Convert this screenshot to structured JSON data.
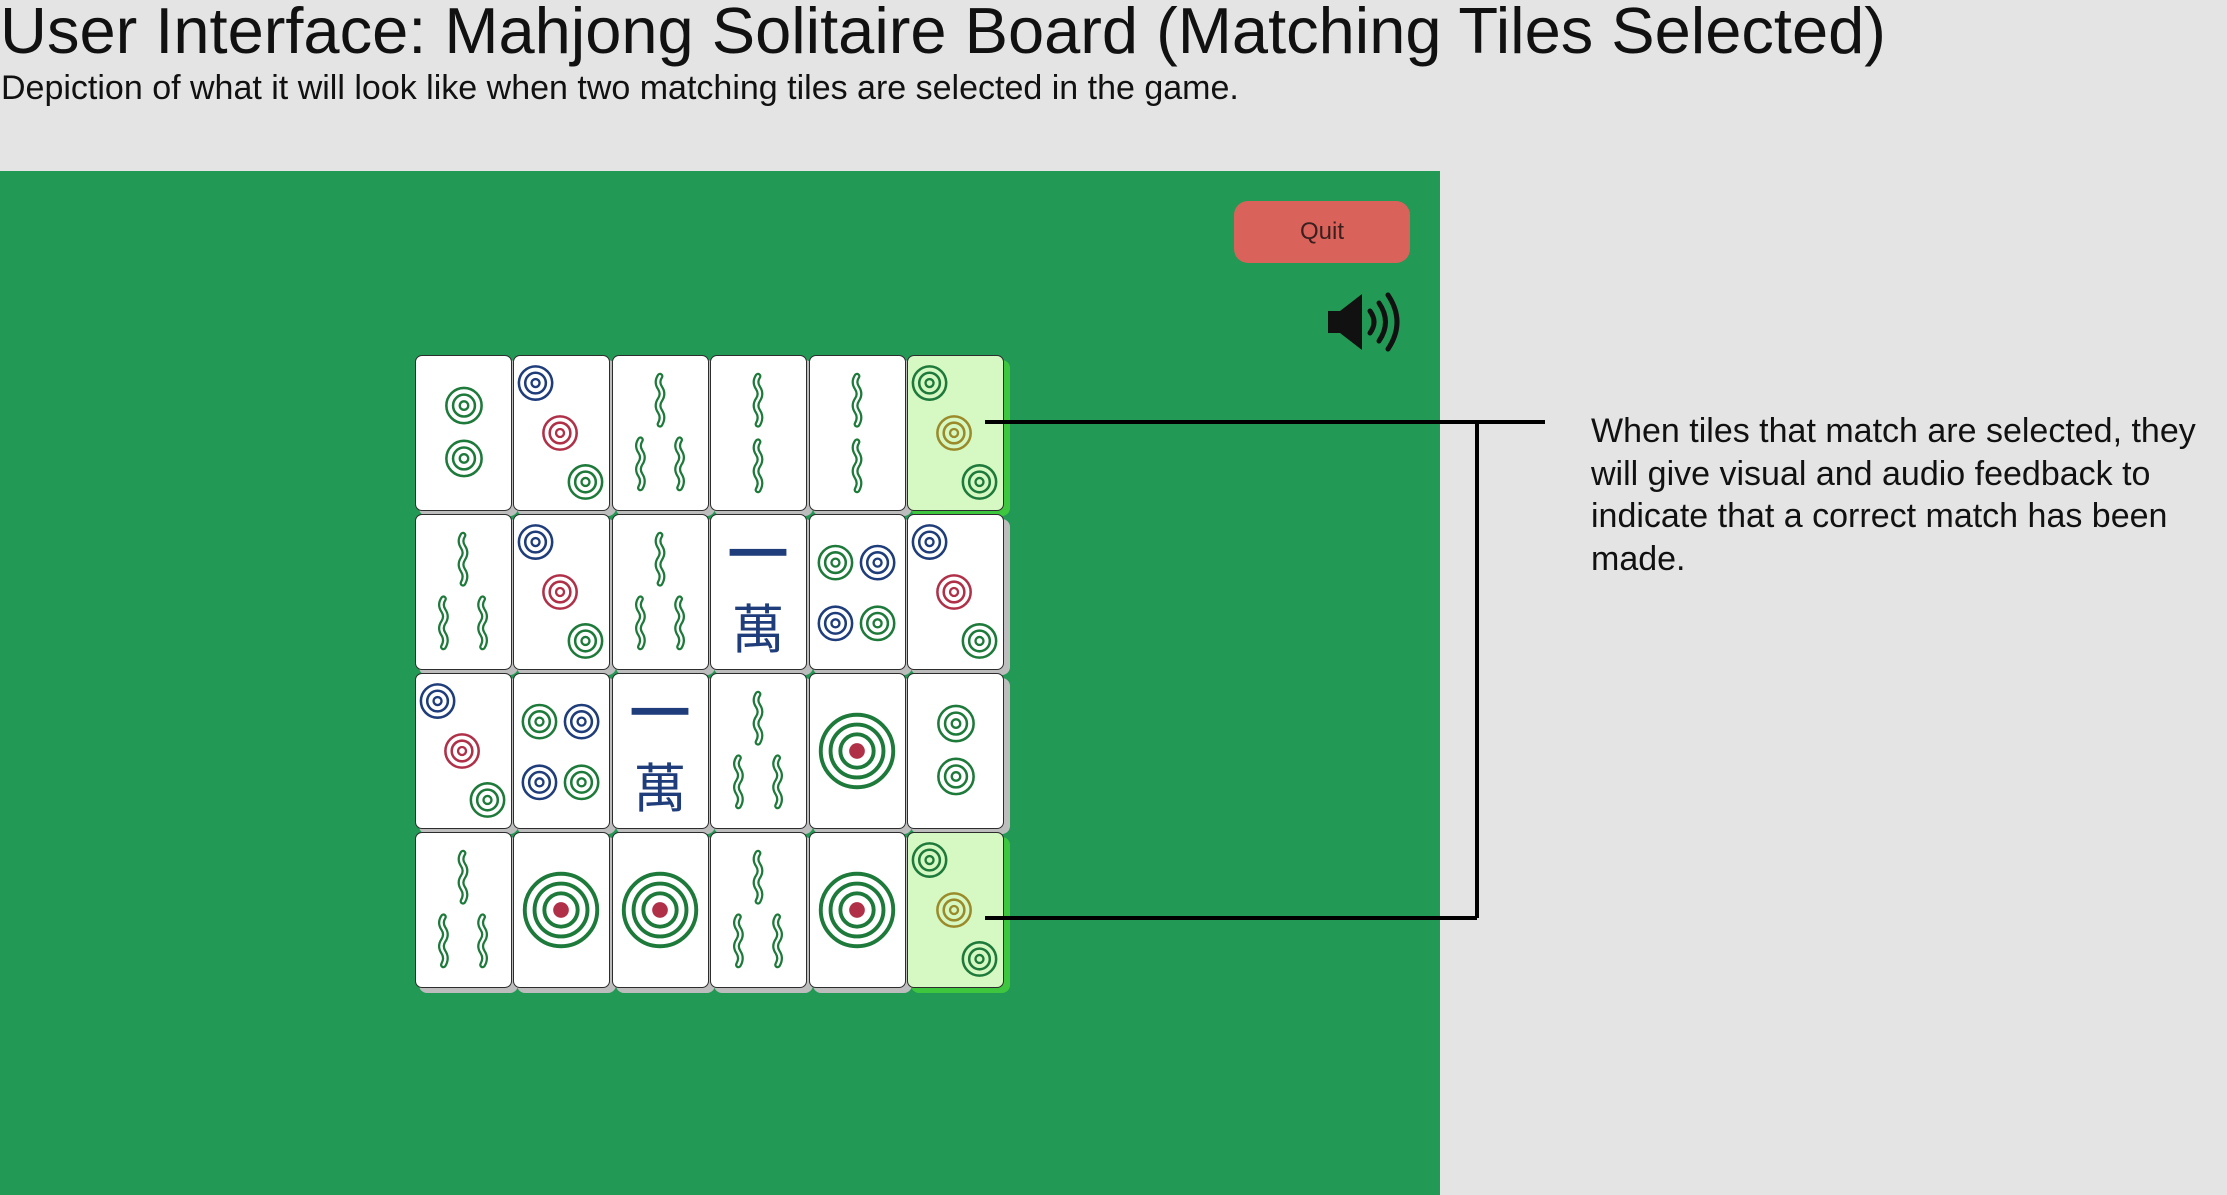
{
  "header": {
    "title": "User Interface: Mahjong Solitaire Board (Matching Tiles Selected)",
    "subtitle": "Depiction of what it will look like when two matching tiles are selected in the game."
  },
  "toolbar": {
    "quit_label": "Quit",
    "sound_icon": "speaker-volume-icon"
  },
  "board": {
    "background": "#229955",
    "rows": [
      [
        {
          "face": "circle-2"
        },
        {
          "face": "circle-3"
        },
        {
          "face": "bamboo-3"
        },
        {
          "face": "bamboo-2"
        },
        {
          "face": "bamboo-2"
        },
        {
          "face": "circle-3",
          "selected": true
        }
      ],
      [
        {
          "face": "bamboo-3"
        },
        {
          "face": "circle-3"
        },
        {
          "face": "bamboo-3"
        },
        {
          "face": "character-1",
          "char": "一萬"
        },
        {
          "face": "circle-4"
        },
        {
          "face": "circle-3"
        }
      ],
      [
        {
          "face": "circle-3"
        },
        {
          "face": "circle-4"
        },
        {
          "face": "character-1",
          "char": "一萬"
        },
        {
          "face": "bamboo-3"
        },
        {
          "face": "circle-1"
        },
        {
          "face": "circle-2"
        }
      ],
      [
        {
          "face": "bamboo-3"
        },
        {
          "face": "circle-1"
        },
        {
          "face": "circle-1"
        },
        {
          "face": "bamboo-3"
        },
        {
          "face": "circle-1"
        },
        {
          "face": "circle-3",
          "selected": true
        }
      ]
    ]
  },
  "annotation": {
    "text": "When tiles that match are selected, they will give visual and audio feedback to indicate that a correct match has been made."
  },
  "colors": {
    "selected_tile": "#d6f8c2",
    "selected_glow": "#3fc63f",
    "quit_button": "#d9625a",
    "dot_green": "#1e7a3a",
    "dot_blue": "#1f3d7a",
    "dot_red": "#b03048",
    "dot_gold": "#9a8a2a"
  }
}
